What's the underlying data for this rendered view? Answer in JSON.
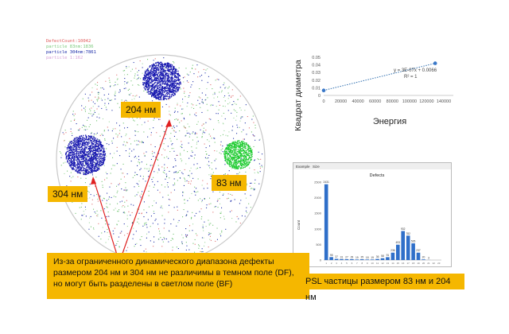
{
  "wafer": {
    "legend": [
      {
        "text": "DefectCount:10042",
        "color": "#e05a5a"
      },
      {
        "text": "particle 83nm:1836",
        "color": "#7cc97c"
      },
      {
        "text": "particle 304nm:7861",
        "color": "#1a2ba8"
      },
      {
        "text": "particle 1:162",
        "color": "#d7a0d7"
      }
    ],
    "labels": {
      "l204": "204 нм",
      "l304": "304 нм",
      "l83": "83 нм"
    },
    "colors": {
      "dark_blue": "#1a1ab0",
      "green": "#22cc33",
      "arrow": "#e02020",
      "yellow": "#f5b700"
    }
  },
  "explanation": "Из-за ограниченного динамического диапазона дефекты размером 204 нм и 304 нм не различимы в темном поле (DF), но могут быть разделены в светлом поле (BF)",
  "psl_caption": "PSL частицы размером 83 нм и 204 нм",
  "chart_data": [
    {
      "type": "scatter",
      "title": "",
      "xlabel": "Энергия",
      "ylabel": "Квадрат диаметра",
      "xlim": [
        0,
        140000
      ],
      "ylim": [
        0,
        0.05
      ],
      "x_ticks": [
        "0",
        "20000",
        "40000",
        "60000",
        "80000",
        "100000",
        "120000",
        "140000"
      ],
      "y_ticks": [
        "0",
        "0.01",
        "0.02",
        "0.03",
        "0.04",
        "0.05"
      ],
      "series": [
        {
          "x": [
            0,
            130000
          ],
          "y": [
            0.0066,
            0.0421
          ]
        }
      ],
      "annotation": [
        "y = 3E-07x + 0.0066",
        "R² = 1"
      ],
      "trendline": true,
      "grid": false
    },
    {
      "type": "bar",
      "title": "Defects",
      "xlabel": "",
      "ylabel": "Count",
      "window_tabs": [
        "Example",
        "Size"
      ],
      "categories": [
        "1",
        "2",
        "3",
        "4",
        "5",
        "6",
        "7",
        "8",
        "9",
        "10",
        "11",
        "12",
        "13",
        "14",
        "15",
        "16",
        "17",
        "18",
        "19",
        "20",
        "21",
        "22",
        "23"
      ],
      "values": [
        2431,
        95,
        37,
        31,
        27,
        29,
        19,
        25,
        18,
        19,
        36,
        58,
        91,
        236,
        493,
        932,
        782,
        535,
        237,
        20,
        3,
        0,
        0
      ],
      "data_labels": [
        "2431",
        "95",
        "37",
        "31",
        "27",
        "29",
        "19",
        "25",
        "18",
        "19",
        "36",
        "58",
        "91",
        "236",
        "493",
        "932",
        "782",
        "535",
        "237",
        "20",
        "3",
        "",
        ""
      ],
      "ylim": [
        0,
        2500
      ],
      "y_ticks": [
        "0",
        "500",
        "1000",
        "1500",
        "2000",
        "2500"
      ],
      "bar_color": "#2f6fc9"
    }
  ]
}
